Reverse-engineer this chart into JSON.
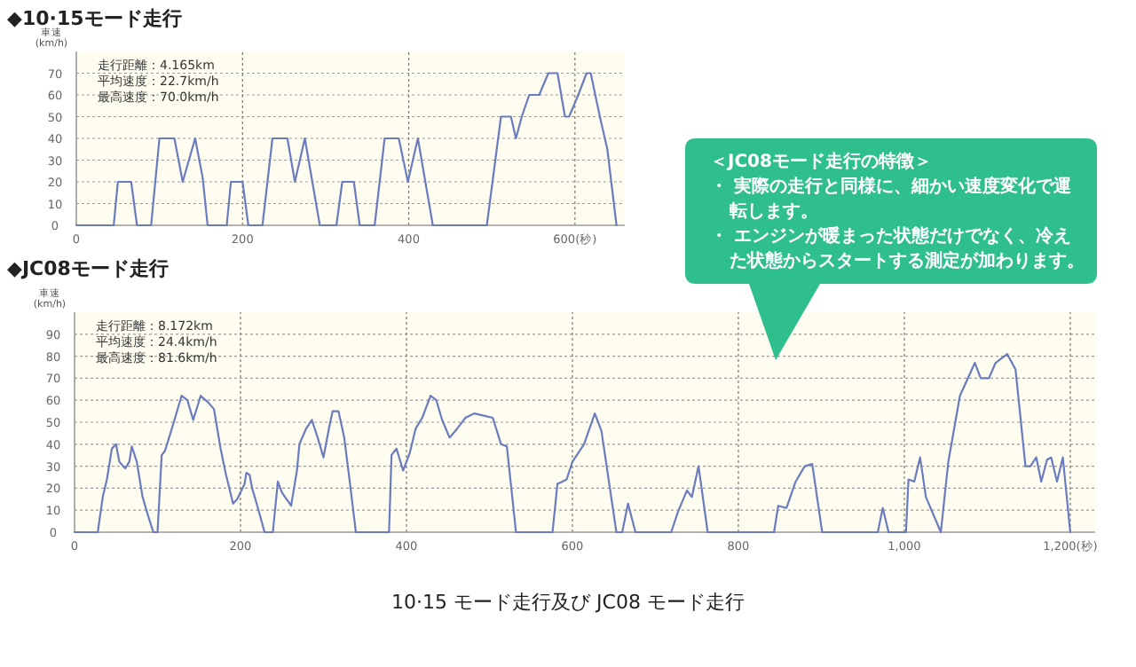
{
  "chart_data": [
    {
      "type": "line",
      "title": "◆10·15モード走行",
      "ylabel": "車速 (km/h)",
      "xlim": [
        0,
        660
      ],
      "ylim": [
        0,
        80
      ],
      "xticks": [
        0,
        200,
        400,
        {
          "value": 600,
          "label": "600(秒)"
        }
      ],
      "yticks": [
        0,
        10,
        20,
        30,
        40,
        50,
        60,
        70
      ],
      "grid": true,
      "annotations": [
        "走行距離：4.165km",
        "平均速度：22.7km/h",
        "最高速度：70.0km/h"
      ],
      "series": [
        {
          "color": "#6a7bbf",
          "x": [
            0,
            45,
            50,
            66,
            73,
            90,
            100,
            118,
            128,
            143,
            152,
            158,
            181,
            186,
            200,
            207,
            224,
            236,
            254,
            263,
            275,
            293,
            313,
            320,
            334,
            341,
            359,
            371,
            388,
            399,
            411,
            429,
            494,
            511,
            523,
            529,
            536,
            545,
            557,
            568,
            579,
            588,
            593,
            604,
            614,
            619,
            630,
            639,
            650
          ],
          "values": [
            0,
            0,
            20,
            20,
            0,
            0,
            40,
            40,
            20,
            40,
            22,
            0,
            0,
            20,
            20,
            0,
            0,
            40,
            40,
            20,
            40,
            0,
            0,
            20,
            20,
            0,
            0,
            40,
            40,
            20,
            40,
            0,
            0,
            50,
            50,
            40,
            50,
            60,
            60,
            70,
            70,
            50,
            50,
            60,
            70,
            70,
            50,
            35,
            0
          ]
        }
      ]
    },
    {
      "type": "line",
      "title": "◆JC08モード走行",
      "ylabel": "車速 (km/h)",
      "xlim": [
        0,
        1230
      ],
      "ylim": [
        0,
        100
      ],
      "xticks": [
        0,
        200,
        400,
        600,
        800,
        {
          "value": 1000,
          "label": "1,000"
        },
        {
          "value": 1200,
          "label": "1,200(秒)"
        }
      ],
      "yticks": [
        0,
        10,
        20,
        30,
        40,
        50,
        60,
        70,
        80,
        90
      ],
      "grid": true,
      "annotations": [
        "走行距離：8.172km",
        "平均速度：24.4km/h",
        "最高速度：81.6km/h",
        "10·15 モード走行及び JC08 モード走行"
      ],
      "series": [
        {
          "color": "#6a7bbf",
          "x": [
            0,
            28,
            34,
            39,
            45,
            50,
            54,
            61,
            66,
            69,
            75,
            82,
            89,
            95,
            100,
            105,
            109,
            118,
            129,
            136,
            143,
            152,
            161,
            168,
            176,
            182,
            191,
            196,
            205,
            207,
            211,
            214,
            221,
            229,
            239,
            245,
            250,
            261,
            268,
            271,
            279,
            286,
            293,
            300,
            307,
            311,
            318,
            325,
            332,
            339,
            379,
            382,
            388,
            396,
            404,
            411,
            419,
            429,
            436,
            443,
            452,
            461,
            471,
            482,
            493,
            504,
            514,
            521,
            532,
            576,
            582,
            588,
            593,
            600,
            614,
            627,
            635,
            653,
            660,
            667,
            676,
            719,
            727,
            738,
            744,
            752,
            763,
            843,
            848,
            858,
            869,
            880,
            889,
            901,
            968,
            974,
            981,
            1002,
            1005,
            1012,
            1019,
            1026,
            1044,
            1053,
            1067,
            1085,
            1092,
            1102,
            1110,
            1124,
            1134,
            1146,
            1152,
            1159,
            1165,
            1172,
            1177,
            1184,
            1191,
            1200
          ],
          "values": [
            0,
            0,
            16,
            24,
            38,
            40,
            32,
            29,
            32,
            39,
            32,
            16,
            7,
            0,
            0,
            35,
            37,
            48,
            62,
            60,
            51,
            62,
            59,
            56,
            38,
            27,
            13,
            15,
            22,
            27,
            26,
            20,
            11,
            0,
            0,
            23,
            18,
            12,
            28,
            40,
            47,
            51,
            43,
            34,
            48,
            55,
            55,
            43,
            22,
            0,
            0,
            35,
            38,
            28,
            36,
            47,
            52,
            62,
            60,
            51,
            43,
            47,
            52,
            54,
            53,
            52,
            40,
            39,
            0,
            0,
            22,
            23,
            24,
            32,
            40,
            54,
            46,
            0,
            0,
            13,
            0,
            0,
            9,
            19,
            16,
            30,
            0,
            0,
            12,
            11,
            23,
            30,
            31,
            0,
            0,
            11,
            0,
            0,
            24,
            23,
            34,
            16,
            0,
            32,
            62,
            77,
            70,
            70,
            77,
            81,
            74,
            30,
            30,
            34,
            23,
            33,
            34,
            23,
            34,
            0
          ]
        }
      ]
    },
    {
      "type": "other",
      "title": "＜JC08モード走行の特徴＞",
      "annotations": [
        "・ 実際の走行と同様に、細かい速度変化で運転します。",
        "・ エンジンが暖まった状態だけでなく、冷えた状態からスタートする測定が加わります。"
      ]
    }
  ]
}
